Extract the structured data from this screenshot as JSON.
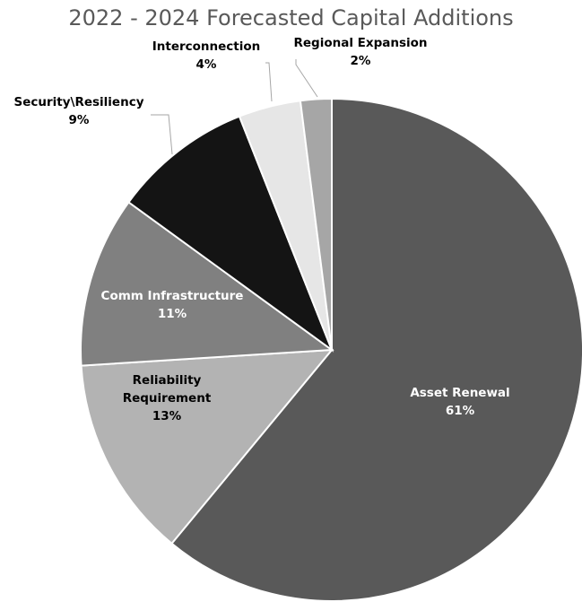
{
  "chart_data": {
    "type": "pie",
    "title": "2022 - 2024 Forecasted Capital Additions",
    "slices": [
      {
        "label": "Asset Renewal",
        "percent_label": "61%",
        "value": 61,
        "color": "#595959",
        "text_color": "#ffffff"
      },
      {
        "label": "Reliability Requirement",
        "label_lines": [
          "Reliability",
          "Requirement"
        ],
        "percent_label": "13%",
        "value": 13,
        "color": "#b3b3b3",
        "text_color": "#000000"
      },
      {
        "label": "Comm Infrastructure",
        "percent_label": "11%",
        "value": 11,
        "color": "#808080",
        "text_color": "#ffffff"
      },
      {
        "label": "Security\\Resiliency",
        "percent_label": "9%",
        "value": 9,
        "color": "#141414",
        "text_color": "#000000"
      },
      {
        "label": "Interconnection",
        "percent_label": "4%",
        "value": 4,
        "color": "#e6e6e6",
        "text_color": "#000000"
      },
      {
        "label": "Regional Expansion",
        "percent_label": "2%",
        "value": 2,
        "color": "#a6a6a6",
        "text_color": "#000000"
      }
    ],
    "legend": "none"
  }
}
